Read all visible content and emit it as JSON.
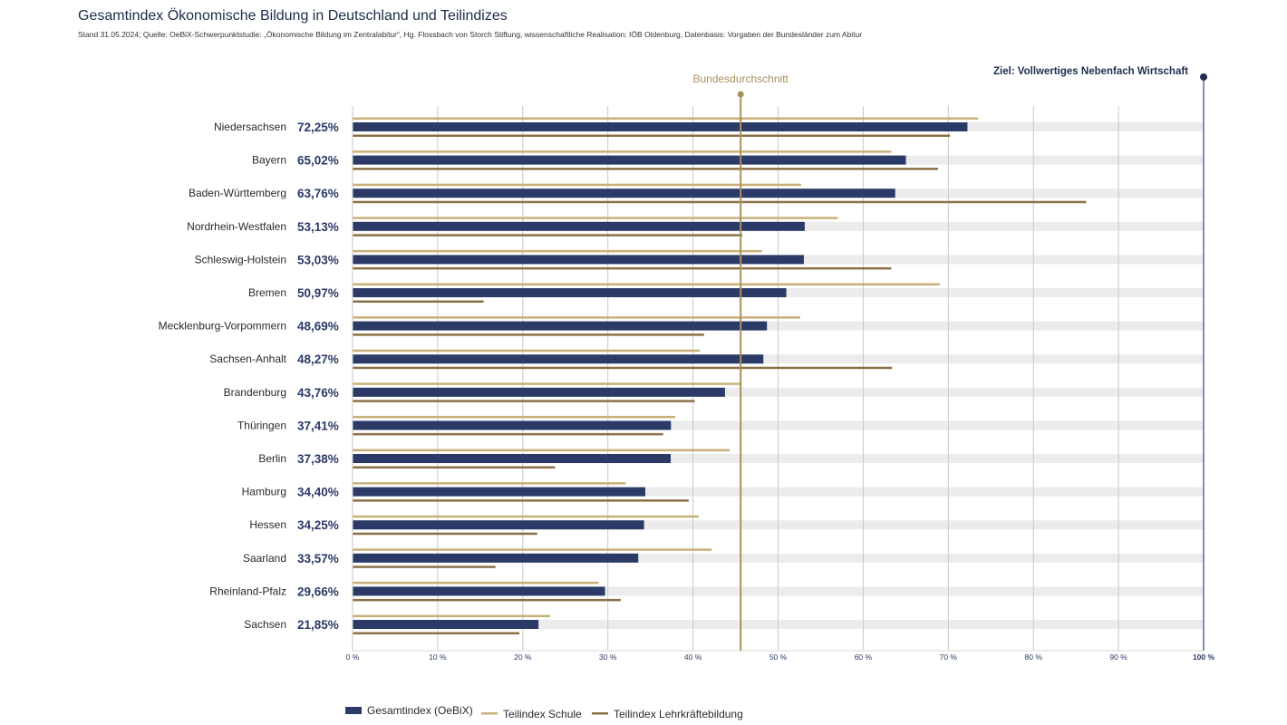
{
  "title": "Gesamtindex Ökonomische Bildung in Deutschland und Teilindizes",
  "source": "Stand 31.05.2024; Quelle: OeBiX-Schwerpunktstudie: „Ökonomische Bildung im Zentralabitur“, Hg. Flossbach von Storch Stiftung, wissenschaftliche Realisation: IÖB Oldenburg, Datenbasis: Vorgaben der Bundesländer zum Abitur",
  "colors": {
    "gesamt": "#2b3a67",
    "schule": "#c8b07a",
    "lehrkraefte": "#8b7046",
    "track": "#ececec",
    "grid": "#c9c9c9",
    "average": "#a89060",
    "goal": "#5b6b94",
    "goal_label": "#1f2d50"
  },
  "chart_data": {
    "type": "bar",
    "orientation": "horizontal",
    "categories": [
      "Niedersachsen",
      "Bayern",
      "Baden-Württemberg",
      "Nordrhein-Westfalen",
      "Schleswig-Holstein",
      "Bremen",
      "Mecklenburg-Vorpommern",
      "Sachsen-Anhalt",
      "Brandenburg",
      "Thüringen",
      "Berlin",
      "Hamburg",
      "Hessen",
      "Saarland",
      "Rheinland-Pfalz",
      "Sachsen"
    ],
    "value_labels": [
      "72,25%",
      "65,02%",
      "63,76%",
      "53,13%",
      "53,03%",
      "50,97%",
      "48,69%",
      "48,27%",
      "43,76%",
      "37,41%",
      "37,38%",
      "34,40%",
      "34,25%",
      "33,57%",
      "29,66%",
      "21,85%"
    ],
    "series": [
      {
        "name": "Teilindex Schule",
        "values": [
          73.5,
          63.3,
          52.7,
          57.0,
          48.1,
          69.0,
          52.6,
          40.8,
          45.6,
          37.9,
          44.3,
          32.1,
          40.7,
          42.2,
          28.9,
          23.2
        ]
      },
      {
        "name": "Gesamtindex (OeBiX)",
        "values": [
          72.25,
          65.02,
          63.76,
          53.13,
          53.03,
          50.97,
          48.69,
          48.27,
          43.76,
          37.41,
          37.38,
          34.4,
          34.25,
          33.57,
          29.66,
          21.85
        ]
      },
      {
        "name": "Teilindex Lehrkräftebildung",
        "values": [
          70.2,
          68.8,
          86.2,
          45.8,
          63.3,
          15.4,
          41.3,
          63.4,
          40.2,
          36.5,
          23.8,
          39.5,
          21.7,
          16.8,
          31.5,
          19.6
        ]
      }
    ],
    "xlim": [
      0,
      100
    ],
    "x_ticks": [
      0,
      10,
      20,
      30,
      40,
      50,
      60,
      70,
      80,
      90,
      100
    ],
    "x_tick_labels": [
      "0 %",
      "10 %",
      "20 %",
      "30 %",
      "40 %",
      "50 %",
      "60 %",
      "70 %",
      "80 %",
      "90 %",
      "100 %"
    ],
    "average": {
      "value": 45.6,
      "label": "Bundesdurchschnitt"
    },
    "goal": {
      "value": 100,
      "label": "Ziel: Vollwertiges Nebenfach Wirtschaft"
    },
    "grid": true,
    "legend": {
      "position": "bottom-center",
      "entries": [
        "Gesamtindex (OeBiX)",
        "Teilindex Schule",
        "Teilindex Lehrkräftebildung"
      ]
    }
  }
}
